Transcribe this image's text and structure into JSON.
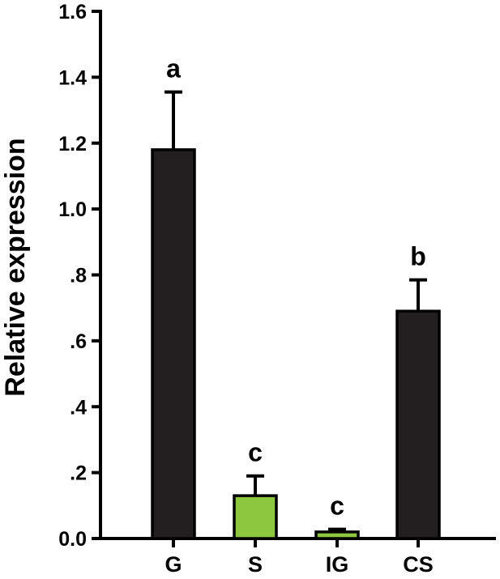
{
  "chart_data": {
    "type": "bar",
    "ylabel": "Relative expression",
    "xlabel": "",
    "ylim": [
      0,
      1.6
    ],
    "yticks": [
      0.0,
      0.2,
      0.4,
      0.6,
      0.8,
      1.0,
      1.2,
      1.4,
      1.6
    ],
    "ytick_labels": [
      "0.0",
      ".2",
      ".4",
      ".6",
      ".8",
      "1.0",
      "1.2",
      "1.4",
      "1.6"
    ],
    "categories": [
      "G",
      "S",
      "IG",
      "CS"
    ],
    "values": [
      1.18,
      0.13,
      0.02,
      0.69
    ],
    "errors": [
      0.175,
      0.06,
      0.008,
      0.095
    ],
    "significance": [
      "a",
      "c",
      "c",
      "b"
    ],
    "bar_colors": [
      "#231f20",
      "#8dc63f",
      "#8dc63f",
      "#231f20"
    ],
    "grid": false
  }
}
